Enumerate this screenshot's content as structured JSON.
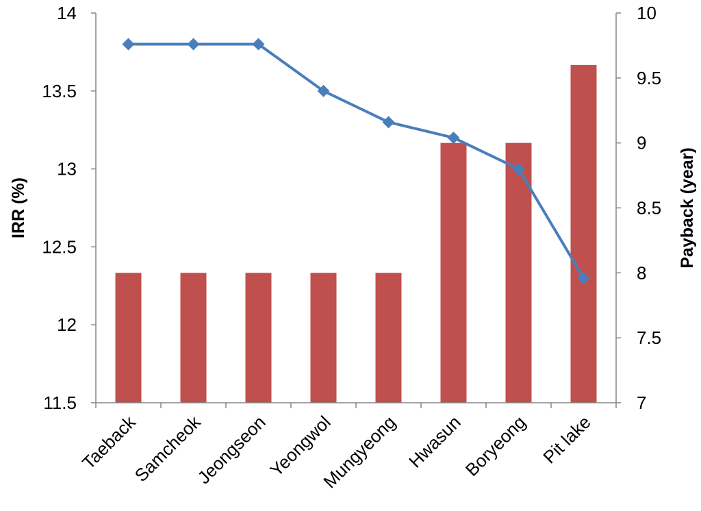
{
  "chart_data": {
    "type": "bar",
    "categories": [
      "Taeback",
      "Samcheok",
      "Jeongseon",
      "Yeongwol",
      "Mungyeong",
      "Hwasun",
      "Boryeong",
      "Pit lake"
    ],
    "series": [
      {
        "type": "line",
        "axis": "left",
        "color": "#4a7ebb",
        "values": [
          13.8,
          13.8,
          13.8,
          13.5,
          13.3,
          13.2,
          13.0,
          12.3
        ]
      },
      {
        "type": "bar",
        "axis": "right",
        "color": "#c0504d",
        "values": [
          8,
          8,
          8,
          8,
          8,
          9,
          9,
          9.6
        ]
      }
    ],
    "ylabel": "IRR (%)",
    "y2label": "Payback (year)",
    "ylim": [
      11.5,
      14
    ],
    "y2lim": [
      7,
      10
    ],
    "yticks": [
      "11.5",
      "12",
      "12.5",
      "13",
      "13.5",
      "14"
    ],
    "y2ticks": [
      "7",
      "7.5",
      "8",
      "8.5",
      "9",
      "9.5",
      "10"
    ],
    "grid": false,
    "legend": "none"
  }
}
